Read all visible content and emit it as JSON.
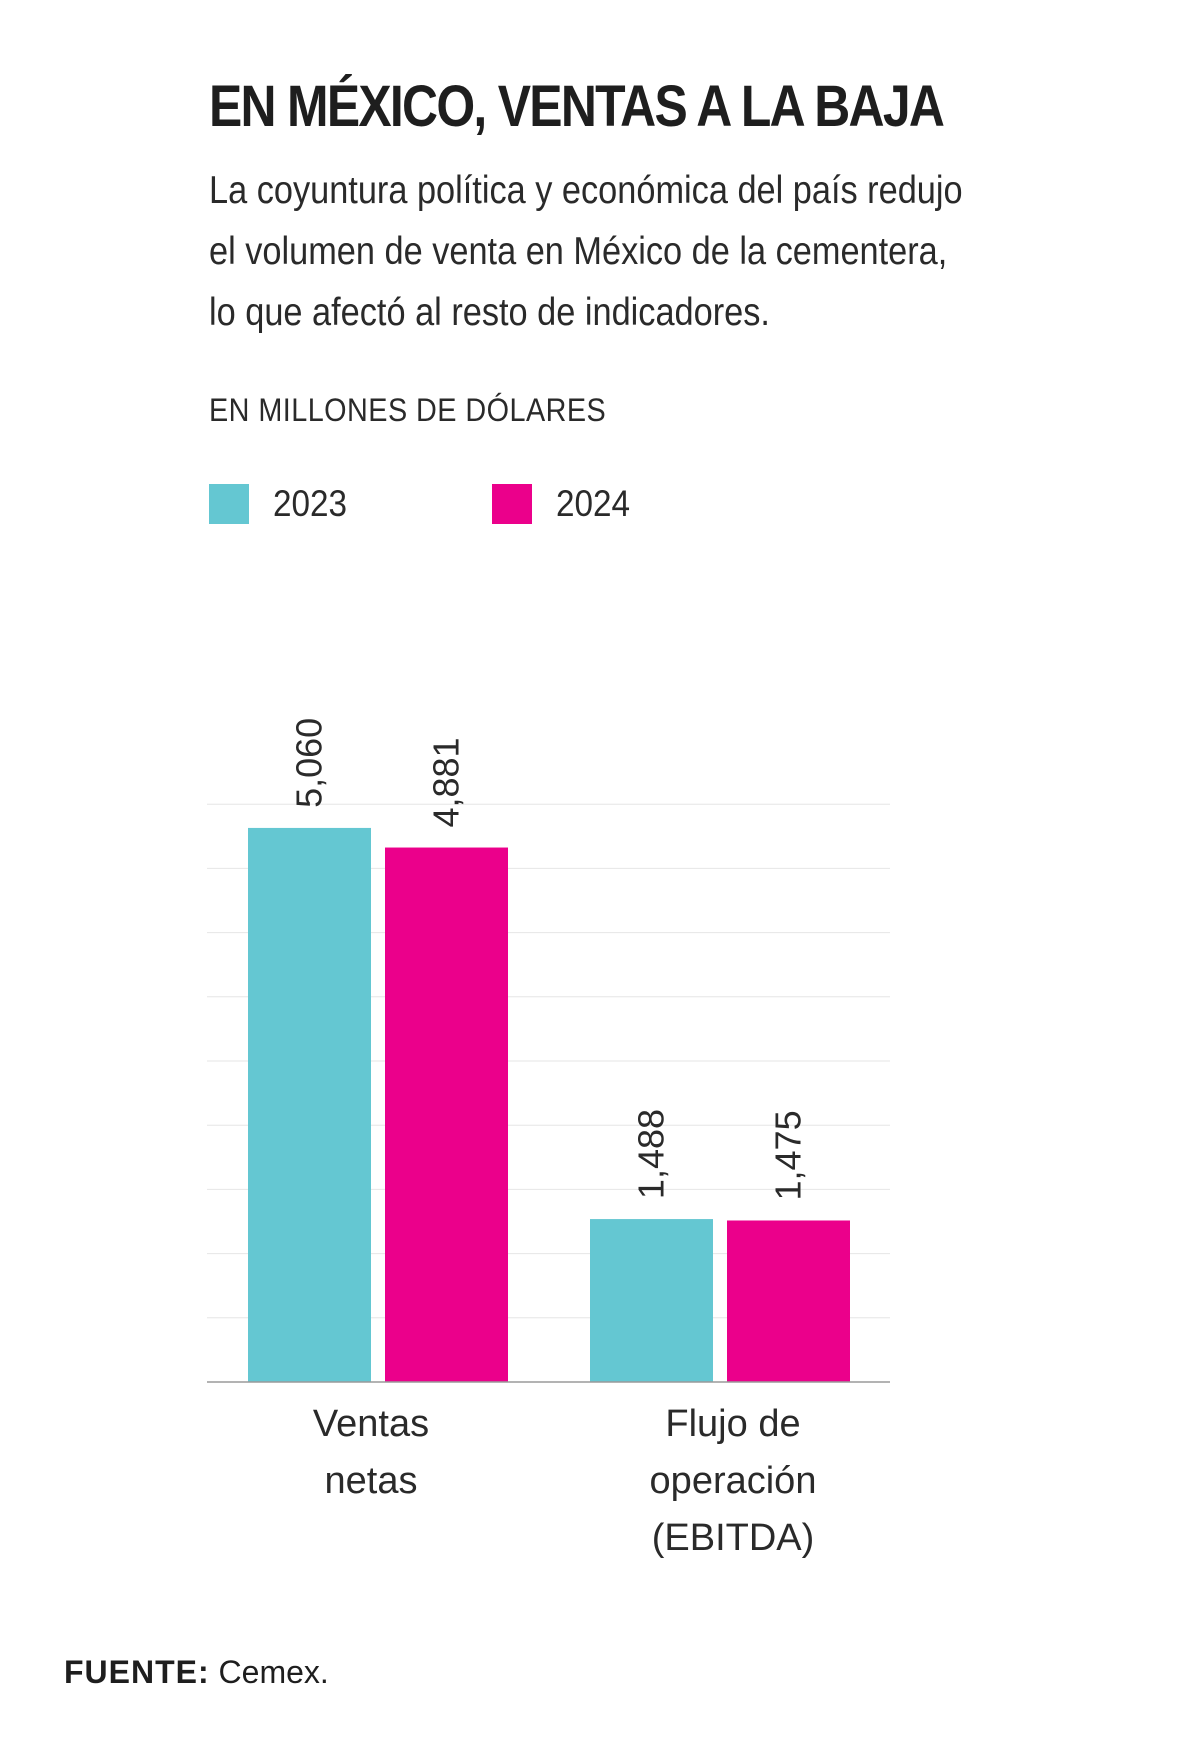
{
  "header": {
    "title": "EN MÉXICO, VENTAS A LA BAJA",
    "subtitle": "La coyuntura política y económica del país redujo el volumen de venta en México de la cementera, lo que afectó al resto de indicadores.",
    "units": "EN MILLONES DE DÓLARES"
  },
  "legend": [
    {
      "label": "2023",
      "color": "#64c7d2"
    },
    {
      "label": "2024",
      "color": "#eb008b"
    }
  ],
  "chart_data": {
    "type": "bar",
    "categories": [
      "Ventas\nnetas",
      "Flujo de\noperación\n(EBITDA)"
    ],
    "series": [
      {
        "name": "2023",
        "color": "#64c7d2",
        "values": [
          5060,
          1488
        ],
        "labels": [
          "5,060",
          "1,488"
        ]
      },
      {
        "name": "2024",
        "color": "#eb008b",
        "values": [
          4881,
          1475
        ],
        "labels": [
          "4,881",
          "1,475"
        ]
      }
    ],
    "ylim": [
      0,
      5300
    ],
    "grid": true,
    "legend_position": "top-left"
  },
  "footer": {
    "source_label": "FUENTE:",
    "source_text": " Cemex."
  }
}
